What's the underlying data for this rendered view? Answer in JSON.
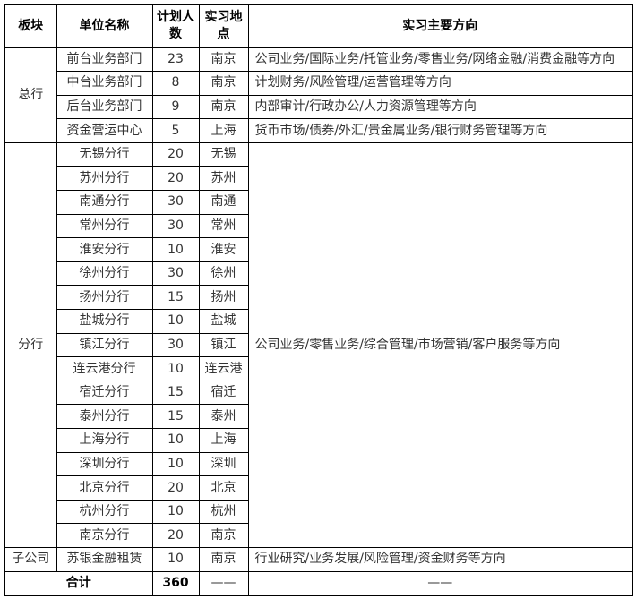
{
  "table": {
    "headers": {
      "section": "板块",
      "unit": "单位名称",
      "count": "计划人数",
      "location": "实习地点",
      "direction": "实习主要方向"
    },
    "sections": [
      {
        "name": "总行",
        "rows": [
          {
            "unit": "前台业务部门",
            "count": "23",
            "location": "南京",
            "direction": "公司业务/国际业务/托管业务/零售业务/网络金融/消费金融等方向"
          },
          {
            "unit": "中台业务部门",
            "count": "8",
            "location": "南京",
            "direction": "计划财务/风险管理/运营管理等方向"
          },
          {
            "unit": "后台业务部门",
            "count": "9",
            "location": "南京",
            "direction": "内部审计/行政办公/人力资源管理等方向"
          },
          {
            "unit": "资金营运中心",
            "count": "5",
            "location": "上海",
            "direction": "货币市场/债券/外汇/贵金属业务/银行财务管理等方向"
          }
        ]
      },
      {
        "name": "分行",
        "direction": "公司业务/零售业务/综合管理/市场营销/客户服务等方向",
        "rows": [
          {
            "unit": "无锡分行",
            "count": "20",
            "location": "无锡"
          },
          {
            "unit": "苏州分行",
            "count": "20",
            "location": "苏州"
          },
          {
            "unit": "南通分行",
            "count": "30",
            "location": "南通"
          },
          {
            "unit": "常州分行",
            "count": "30",
            "location": "常州"
          },
          {
            "unit": "淮安分行",
            "count": "10",
            "location": "淮安"
          },
          {
            "unit": "徐州分行",
            "count": "30",
            "location": "徐州"
          },
          {
            "unit": "扬州分行",
            "count": "15",
            "location": "扬州"
          },
          {
            "unit": "盐城分行",
            "count": "10",
            "location": "盐城"
          },
          {
            "unit": "镇江分行",
            "count": "30",
            "location": "镇江"
          },
          {
            "unit": "连云港分行",
            "count": "10",
            "location": "连云港"
          },
          {
            "unit": "宿迁分行",
            "count": "15",
            "location": "宿迁"
          },
          {
            "unit": "泰州分行",
            "count": "15",
            "location": "泰州"
          },
          {
            "unit": "上海分行",
            "count": "10",
            "location": "上海"
          },
          {
            "unit": "深圳分行",
            "count": "10",
            "location": "深圳"
          },
          {
            "unit": "北京分行",
            "count": "20",
            "location": "北京"
          },
          {
            "unit": "杭州分行",
            "count": "10",
            "location": "杭州"
          },
          {
            "unit": "南京分行",
            "count": "20",
            "location": "南京"
          }
        ]
      },
      {
        "name": "子公司",
        "rows": [
          {
            "unit": "苏银金融租赁",
            "count": "10",
            "location": "南京",
            "direction": "行业研究/业务发展/风险管理/资金财务等方向"
          }
        ]
      }
    ],
    "total": {
      "label": "合计",
      "count": "360",
      "location": "——",
      "direction": "——"
    }
  }
}
